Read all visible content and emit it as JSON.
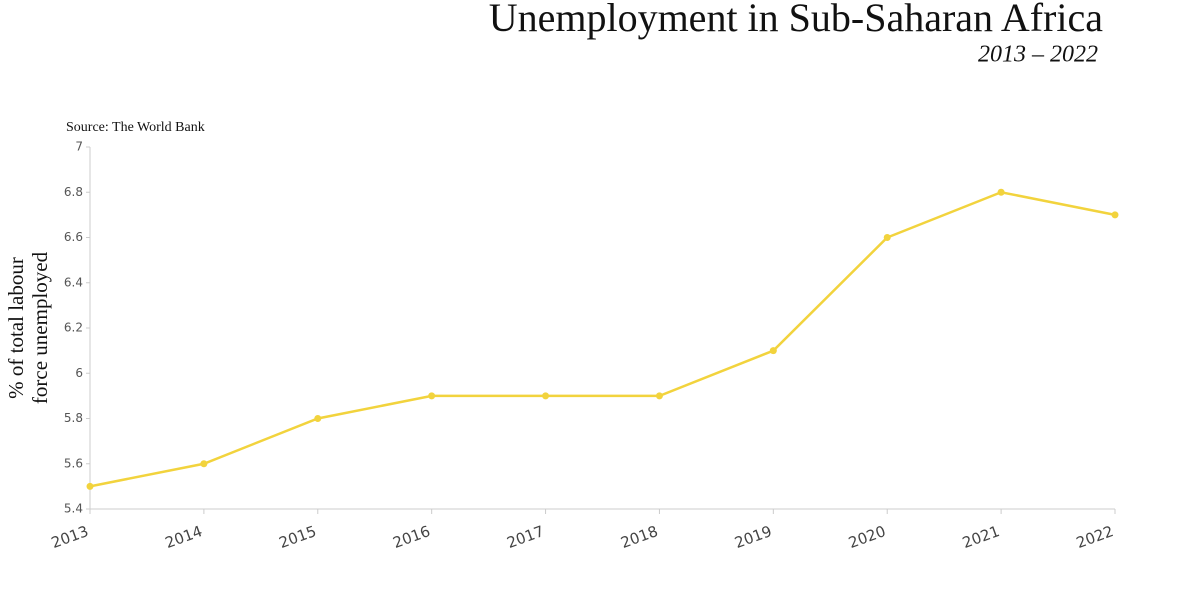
{
  "chart_data": {
    "type": "line",
    "title": "Unemployment in Sub-Saharan Africa",
    "subtitle": "2013 – 2022",
    "source": "Source: The World Bank",
    "ylabel": [
      "% of total labour",
      "force unemployed"
    ],
    "x": [
      2013,
      2014,
      2015,
      2016,
      2017,
      2018,
      2019,
      2020,
      2021,
      2022
    ],
    "values": [
      5.5,
      5.6,
      5.8,
      5.9,
      5.9,
      5.9,
      6.1,
      6.6,
      6.8,
      6.7
    ],
    "color": "#f2d33d",
    "xlim": [
      2013,
      2022
    ],
    "xticks": [
      2013,
      2014,
      2015,
      2016,
      2017,
      2018,
      2019,
      2020,
      2021,
      2022
    ],
    "ylim": [
      5.4,
      7
    ],
    "yticks": [
      5.4,
      5.6,
      5.8,
      6,
      6.2,
      6.4,
      6.6,
      6.8,
      7
    ]
  }
}
